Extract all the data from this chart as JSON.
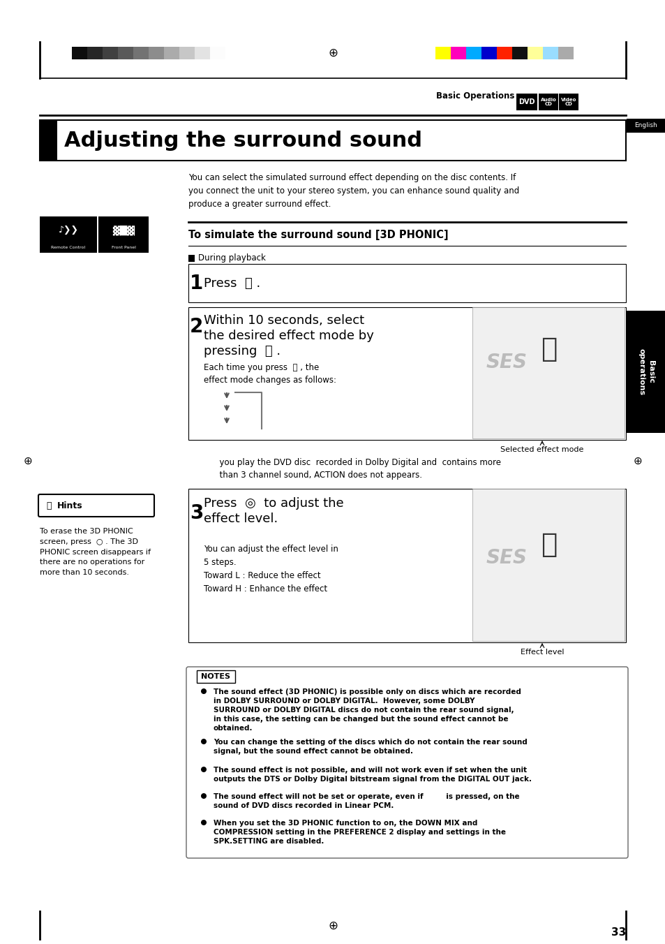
{
  "page_bg": "#ffffff",
  "title": "Adjusting the surround sound",
  "header_text": "Basic Operations",
  "english_label": "English",
  "section_heading": "To simulate the surround sound [3D PHONIC]",
  "during_playback": "During playback",
  "step1_text": "Press  ⎕ .",
  "step2_main_line1": "Within 10 seconds, select",
  "step2_main_line2": "the desired effect mode by",
  "step2_main_line3": "pressing  ⎕ .",
  "step2_sub": "Each time you press  ⎕ , the\neffect mode changes as follows:",
  "step2_caption": "Selected effect mode",
  "step3_main_line1": "Press  ◎  to adjust the",
  "step3_main_line2": "effect level.",
  "step3_sub": "You can adjust the effect level in\n5 steps.\nToward L : Reduce the effect\nToward H : Enhance the effect",
  "step3_caption": "Effect level",
  "intro_text": "You can select the simulated surround effect depending on the disc contents. If\nyou connect the unit to your stereo system, you can enhance sound quality and\nproduce a greater surround effect.",
  "dvd_note": "      you play the DVD disc  recorded in Dolby Digital and  contains more\n      than 3 channel sound, ACTION does not appears.",
  "hints_title": "Hints",
  "hints_text": "To erase the 3D PHONIC\nscreen, press  ○ . The 3D\nPHONIC screen disappears if\nthere are no operations for\nmore than 10 seconds.",
  "notes_title": "NOTES",
  "note1_bold": "The sound effect (3D PHONIC) is possible only on discs which are recorded\nin DOLBY SURROUND or DOLBY DIGITAL.  However, some DOLBY\nSURROUND or DOLBY DIGITAL discs do not contain the rear sound signal,\nin this case, the setting can be changed but the sound effect cannot be\nobtained.",
  "note2": "You can change the setting of the discs which do not contain the rear sound\nsignal, but the sound effect cannot be obtained.",
  "note3": "The sound effect is not possible, and will not work even if set when the unit\noutputs the DTS or Dolby Digital bitstream signal from the DIGITAL OUT jack.",
  "note4": "The sound effect will not be set or operate, even if         is pressed, on the\nsound of DVD discs recorded in Linear PCM.",
  "note5": "When you set the 3D PHONIC function to on, the DOWN MIX and\nCOMPRESSION setting in the PREFERENCE 2 display and settings in the\nSPK.SETTING are disabled.",
  "page_number": "33",
  "basic_ops_sidebar": "Basic\noperations",
  "remote_control_label": "Remote Control",
  "front_panel_label": "Front Panel",
  "color_bar_colors": [
    "#ffff00",
    "#ff00bb",
    "#00aaff",
    "#0000cc",
    "#ff2200",
    "#111111",
    "#ffff99",
    "#99ddff",
    "#aaaaaa"
  ],
  "gray_bar_shades": [
    0.05,
    0.15,
    0.25,
    0.35,
    0.45,
    0.55,
    0.67,
    0.78,
    0.89,
    0.99
  ]
}
